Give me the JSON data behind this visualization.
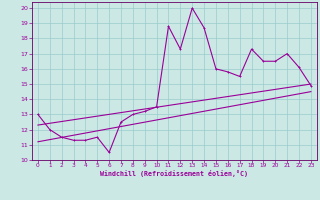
{
  "xlabel": "Windchill (Refroidissement éolien,°C)",
  "background_color": "#cce8e4",
  "grid_color": "#99cccc",
  "line_color": "#990099",
  "spine_color": "#660066",
  "xlim": [
    -0.5,
    23.5
  ],
  "ylim": [
    10,
    20.4
  ],
  "yticks": [
    10,
    11,
    12,
    13,
    14,
    15,
    16,
    17,
    18,
    19,
    20
  ],
  "xticks": [
    0,
    1,
    2,
    3,
    4,
    5,
    6,
    7,
    8,
    9,
    10,
    11,
    12,
    13,
    14,
    15,
    16,
    17,
    18,
    19,
    20,
    21,
    22,
    23
  ],
  "series1_x": [
    0,
    1,
    2,
    3,
    4,
    5,
    6,
    7,
    8,
    9,
    10,
    11,
    12,
    13,
    14,
    15,
    16,
    17,
    18,
    19,
    20,
    21,
    22,
    23
  ],
  "series1_y": [
    13.0,
    12.0,
    11.5,
    11.3,
    11.3,
    11.5,
    10.5,
    12.5,
    13.0,
    13.2,
    13.5,
    18.8,
    17.3,
    20.0,
    18.7,
    16.0,
    15.8,
    15.5,
    17.3,
    16.5,
    16.5,
    17.0,
    16.1,
    14.9
  ],
  "series2_x": [
    0,
    23
  ],
  "series2_y": [
    12.3,
    15.0
  ],
  "series3_x": [
    0,
    23
  ],
  "series3_y": [
    11.2,
    14.5
  ]
}
